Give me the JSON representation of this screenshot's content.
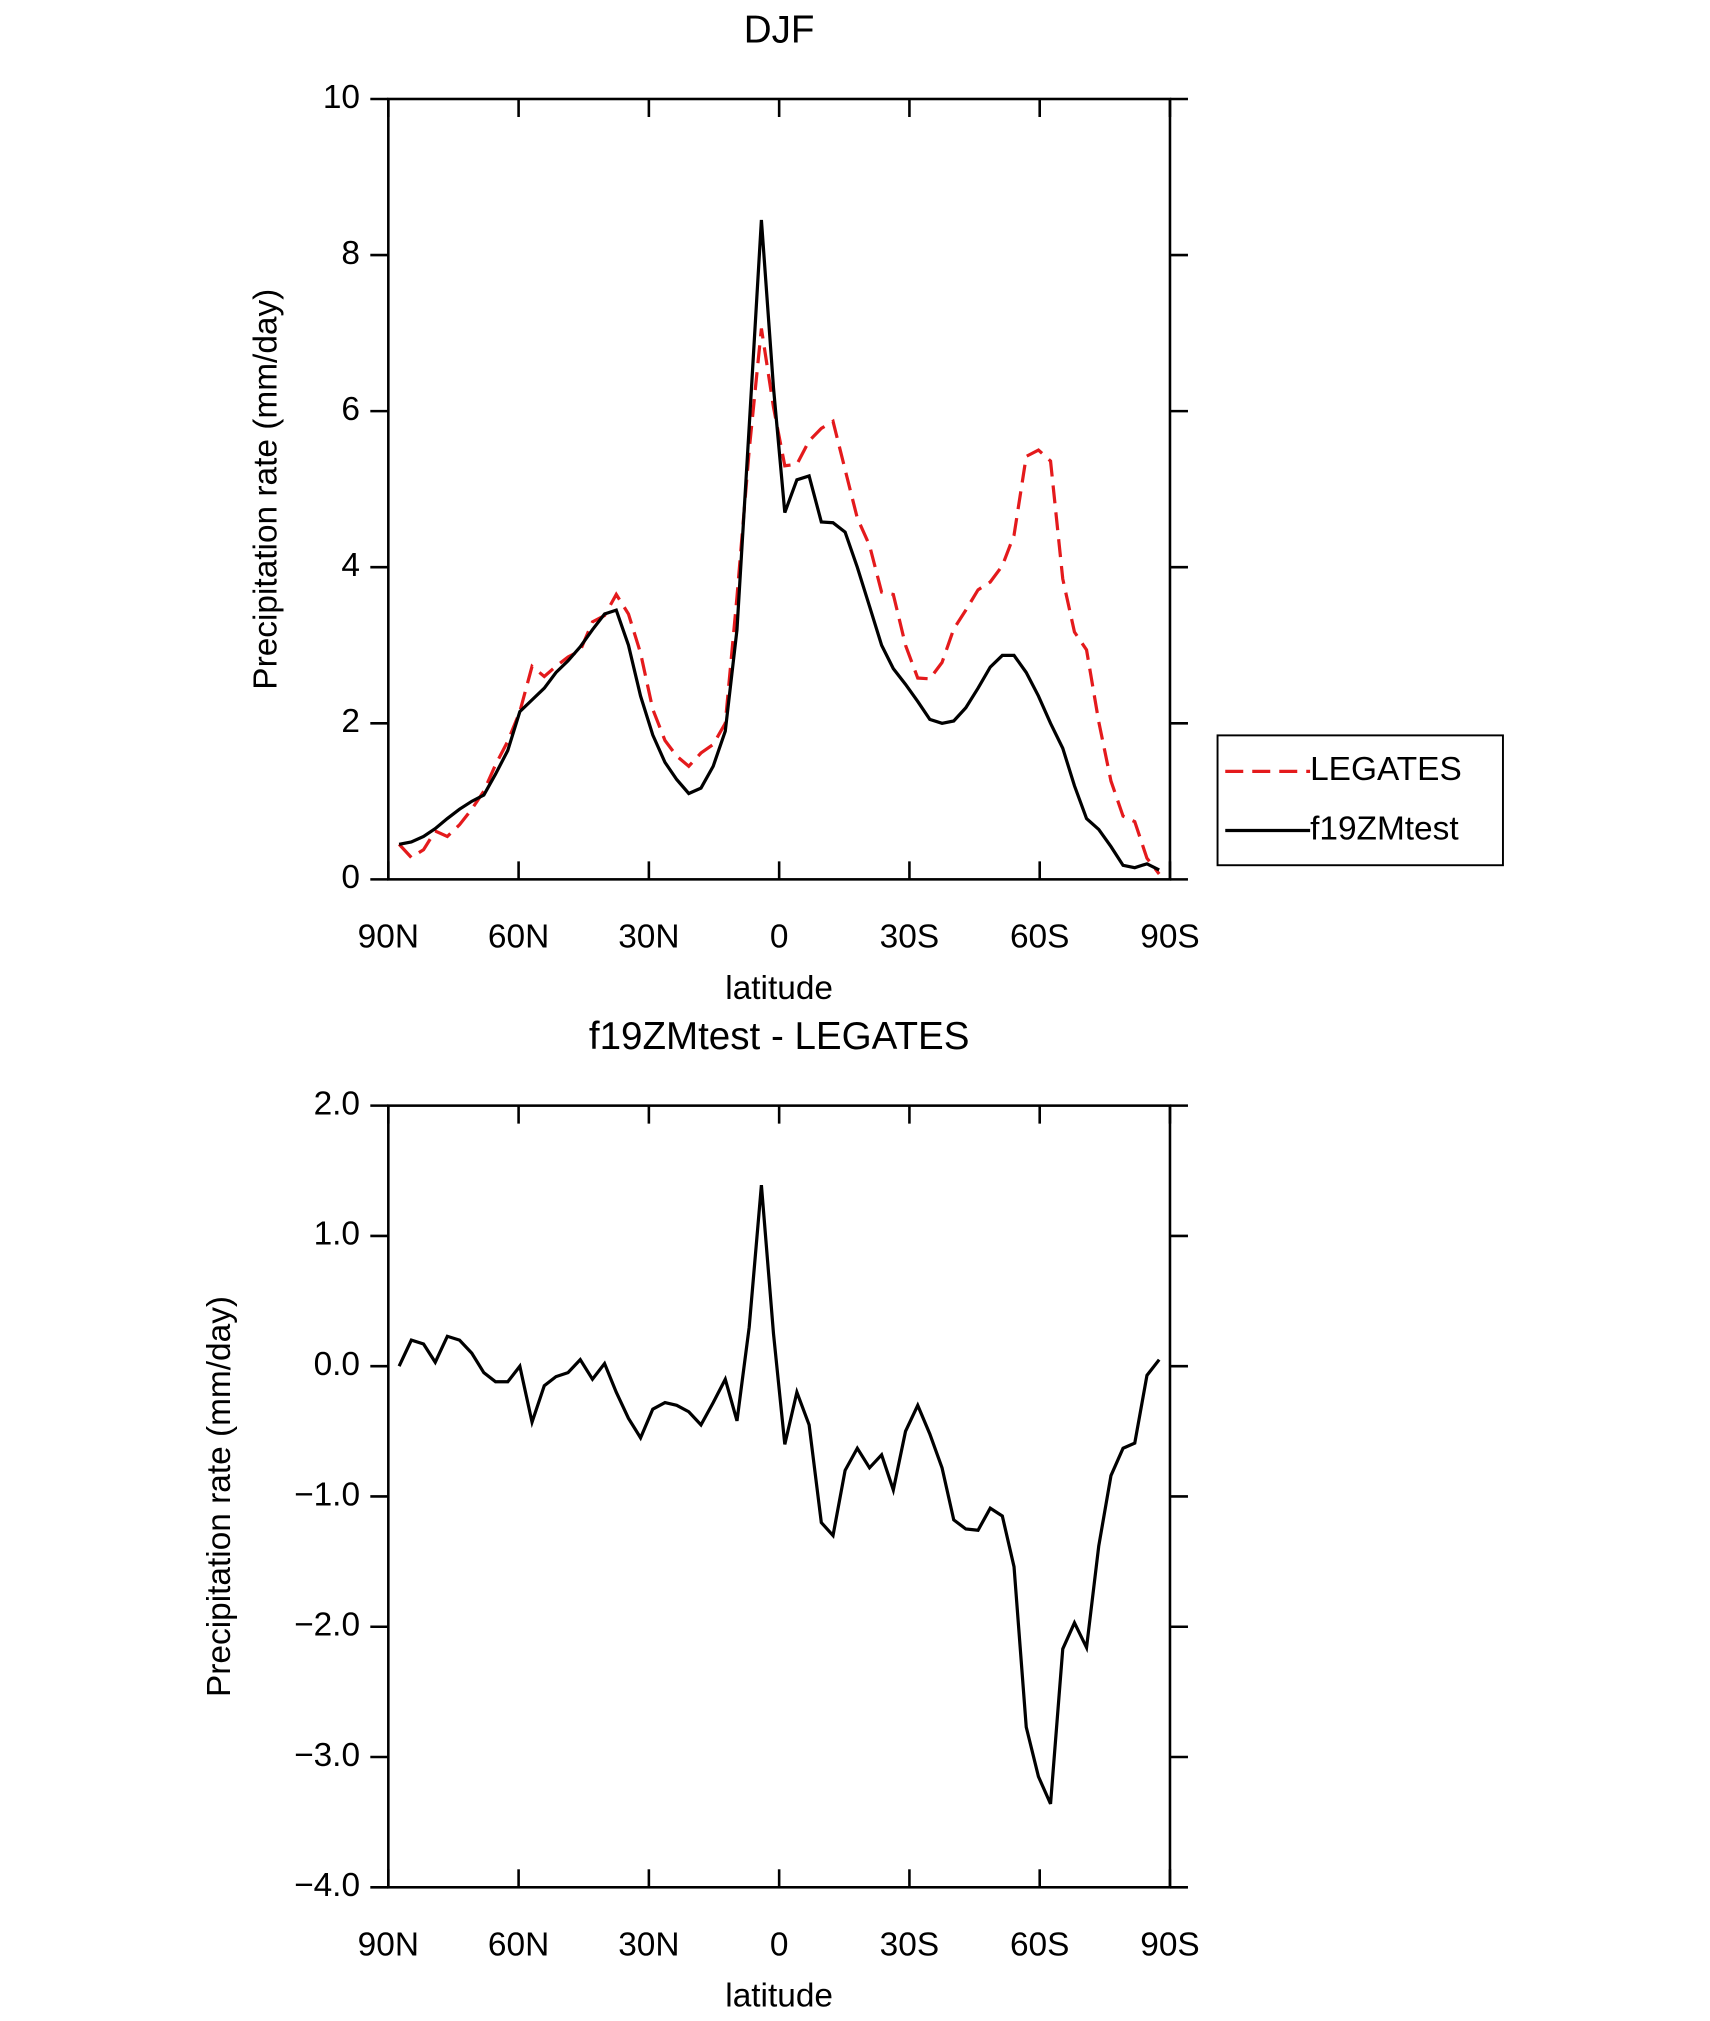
{
  "chart_data": [
    {
      "type": "line",
      "title": "DJF",
      "x_label": "latitude",
      "y_label": "Precipitation rate (mm/day)",
      "x": [
        87.5,
        84.7,
        81.9,
        79.2,
        76.4,
        73.6,
        70.8,
        68.0,
        65.3,
        62.5,
        59.7,
        56.9,
        54.1,
        51.4,
        48.6,
        45.8,
        43.0,
        40.2,
        37.5,
        34.7,
        31.9,
        29.1,
        26.3,
        23.6,
        20.8,
        18.0,
        15.2,
        12.4,
        9.7,
        6.9,
        4.1,
        1.3,
        -1.3,
        -4.1,
        -6.9,
        -9.7,
        -12.4,
        -15.2,
        -18.0,
        -20.8,
        -23.6,
        -26.3,
        -29.1,
        -31.9,
        -34.7,
        -37.5,
        -40.2,
        -43.0,
        -45.8,
        -48.6,
        -51.4,
        -54.1,
        -56.9,
        -59.7,
        -62.5,
        -65.3,
        -68.0,
        -70.8,
        -73.6,
        -76.4,
        -79.2,
        -81.9,
        -84.7,
        -87.5
      ],
      "series": [
        {
          "name": "LEGATES",
          "color": "#e41a1c",
          "dash": "dashed",
          "values": [
            0.45,
            0.28,
            0.38,
            0.62,
            0.55,
            0.7,
            0.9,
            1.13,
            1.47,
            1.77,
            2.15,
            2.73,
            2.6,
            2.73,
            2.85,
            2.93,
            3.3,
            3.38,
            3.65,
            3.4,
            2.9,
            2.18,
            1.78,
            1.58,
            1.45,
            1.62,
            1.73,
            2.0,
            3.62,
            5.5,
            7.06,
            6.05,
            5.3,
            5.32,
            5.62,
            5.78,
            5.87,
            5.25,
            4.63,
            4.28,
            3.68,
            3.65,
            3.0,
            2.58,
            2.57,
            2.78,
            3.21,
            3.45,
            3.71,
            3.81,
            4.02,
            4.41,
            5.42,
            5.5,
            5.36,
            3.85,
            3.17,
            2.94,
            2.02,
            1.26,
            0.81,
            0.74,
            0.27,
            0.07
          ]
        },
        {
          "name": "f19ZMtest",
          "color": "#000000",
          "dash": "solid",
          "values": [
            0.45,
            0.48,
            0.55,
            0.65,
            0.78,
            0.9,
            1.0,
            1.08,
            1.35,
            1.65,
            2.15,
            2.3,
            2.45,
            2.65,
            2.8,
            2.98,
            3.2,
            3.4,
            3.45,
            3.0,
            2.35,
            1.85,
            1.5,
            1.28,
            1.1,
            1.17,
            1.45,
            1.9,
            3.2,
            5.8,
            8.45,
            6.3,
            4.7,
            5.12,
            5.17,
            4.58,
            4.57,
            4.45,
            4.0,
            3.5,
            3.0,
            2.7,
            2.5,
            2.28,
            2.05,
            2.0,
            2.03,
            2.2,
            2.45,
            2.72,
            2.87,
            2.87,
            2.65,
            2.35,
            2.0,
            1.68,
            1.2,
            0.78,
            0.64,
            0.42,
            0.18,
            0.15,
            0.2,
            0.12
          ]
        }
      ],
      "xlim": [
        90,
        -90
      ],
      "xticks": [
        {
          "value": 90,
          "label": "90N"
        },
        {
          "value": 60,
          "label": "60N"
        },
        {
          "value": 30,
          "label": "30N"
        },
        0,
        {
          "value": -30,
          "label": "30S"
        },
        {
          "value": -60,
          "label": "60S"
        },
        {
          "value": -90,
          "label": "90S"
        }
      ],
      "ylim": [
        0,
        10
      ],
      "yticks": [
        0,
        2,
        4,
        6,
        8,
        10
      ],
      "legend": "right"
    },
    {
      "type": "line",
      "title": "f19ZMtest - LEGATES",
      "x_label": "latitude",
      "y_label": "Precipitation rate (mm/day)",
      "x": [
        87.5,
        84.7,
        81.9,
        79.2,
        76.4,
        73.6,
        70.8,
        68.0,
        65.3,
        62.5,
        59.7,
        56.9,
        54.1,
        51.4,
        48.6,
        45.8,
        43.0,
        40.2,
        37.5,
        34.7,
        31.9,
        29.1,
        26.3,
        23.6,
        20.8,
        18.0,
        15.2,
        12.4,
        9.7,
        6.9,
        4.1,
        1.3,
        -1.3,
        -4.1,
        -6.9,
        -9.7,
        -12.4,
        -15.2,
        -18.0,
        -20.8,
        -23.6,
        -26.3,
        -29.1,
        -31.9,
        -34.7,
        -37.5,
        -40.2,
        -43.0,
        -45.8,
        -48.6,
        -51.4,
        -54.1,
        -56.9,
        -59.7,
        -62.5,
        -65.3,
        -68.0,
        -70.8,
        -73.6,
        -76.4,
        -79.2,
        -81.9,
        -84.7,
        -87.5
      ],
      "series": [
        {
          "color": "#000000",
          "dash": "solid",
          "values": [
            0.0,
            0.2,
            0.17,
            0.03,
            0.23,
            0.2,
            0.1,
            -0.05,
            -0.12,
            -0.12,
            0.0,
            -0.43,
            -0.15,
            -0.08,
            -0.05,
            0.05,
            -0.1,
            0.02,
            -0.2,
            -0.4,
            -0.55,
            -0.33,
            -0.28,
            -0.3,
            -0.35,
            -0.45,
            -0.28,
            -0.1,
            -0.42,
            0.3,
            1.39,
            0.25,
            -0.6,
            -0.2,
            -0.45,
            -1.2,
            -1.3,
            -0.8,
            -0.63,
            -0.78,
            -0.68,
            -0.95,
            -0.5,
            -0.3,
            -0.52,
            -0.78,
            -1.18,
            -1.25,
            -1.26,
            -1.09,
            -1.15,
            -1.54,
            -2.77,
            -3.15,
            -3.36,
            -2.17,
            -1.97,
            -2.16,
            -1.38,
            -0.84,
            -0.63,
            -0.59,
            -0.07,
            0.05
          ]
        }
      ],
      "xlim": [
        90,
        -90
      ],
      "xticks": [
        {
          "value": 90,
          "label": "90N"
        },
        {
          "value": 60,
          "label": "60N"
        },
        {
          "value": 30,
          "label": "30N"
        },
        0,
        {
          "value": -30,
          "label": "30S"
        },
        {
          "value": -60,
          "label": "60S"
        },
        {
          "value": -90,
          "label": "90S"
        }
      ],
      "ylim": [
        -4,
        2
      ],
      "yticks": [
        {
          "value": -4,
          "label": "−4.0"
        },
        {
          "value": -3,
          "label": "−3.0"
        },
        {
          "value": -2,
          "label": "−2.0"
        },
        {
          "value": -1,
          "label": "−1.0"
        },
        {
          "value": 0,
          "label": "0.0"
        },
        {
          "value": 1,
          "label": "1.0"
        },
        {
          "value": 2,
          "label": "2.0"
        }
      ]
    }
  ]
}
